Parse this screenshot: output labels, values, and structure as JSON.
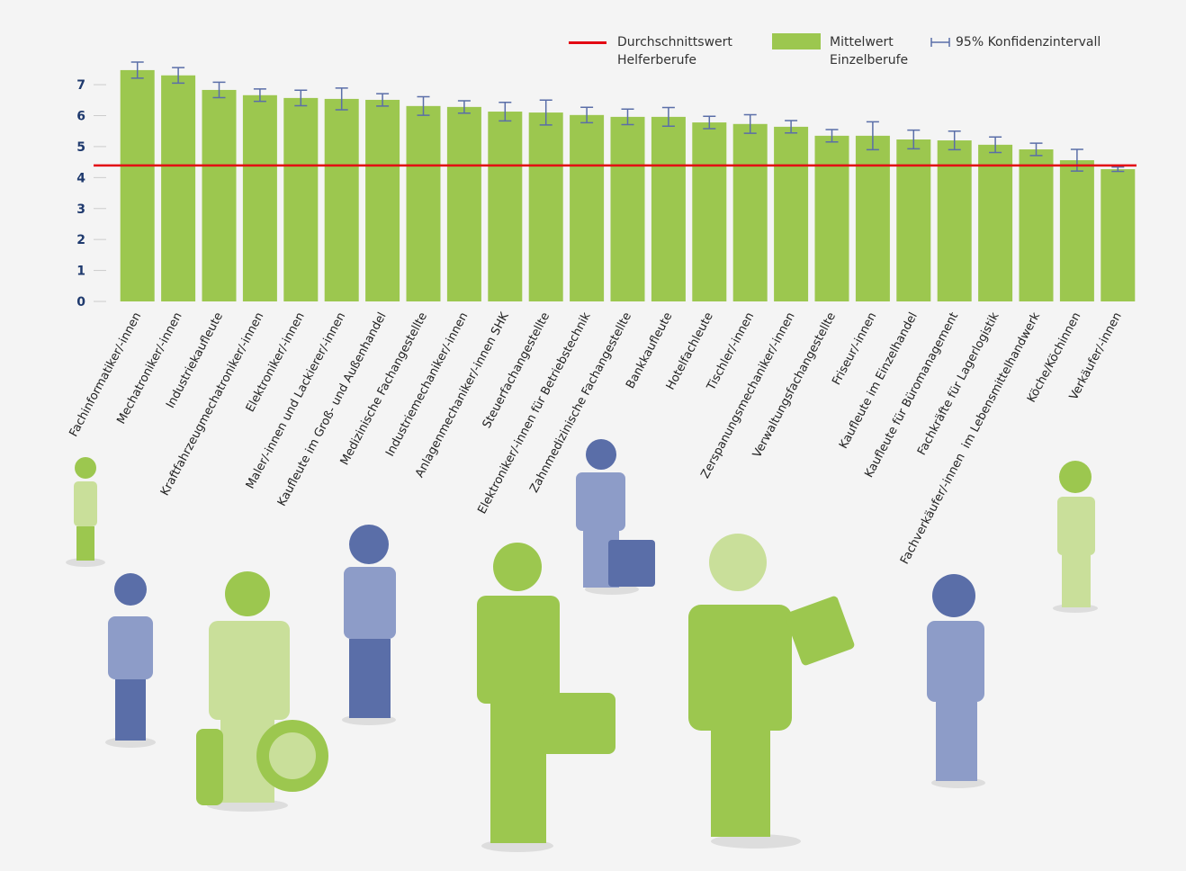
{
  "chart_data": {
    "type": "bar",
    "categories": [
      "Fachinformatiker/-innen",
      "Mechatroniker/-innen",
      "Industriekaufleute",
      "Kraftfahrzeugmechatroniker/-innen",
      "Elektroniker/-innen",
      "Maler/-innen und Lackierer/-innen",
      "Kaufleute im Groß- und Außenhandel",
      "Medizinische Fachangestellte",
      "Industriemechaniker/-innen",
      "Anlagenmechaniker/-innen SHK",
      "Steuerfachangestellte",
      "Elektroniker/-innen für Betriebstechnik",
      "Zahnmedizinische Fachangestellte",
      "Bankkaufleute",
      "Hotelfachleute",
      "Tischler/-innen",
      "Zerspanungsmechaniker/-innen",
      "Verwaltungsfachangestellte",
      "Friseur/-innen",
      "Kaufleute im Einzelhandel",
      "Kaufleute für Büromanagement",
      "Fachkräfte für Lagerlogistik",
      "Fachverkäufer/-innen  im Lebensmittelhandwerk",
      "Köche/Köchinnen",
      "Verkäufer/-innen"
    ],
    "series": [
      {
        "name": "Mittelwert Einzelberufe",
        "color": "#9cc74f",
        "values": [
          7.47,
          7.3,
          6.83,
          6.66,
          6.57,
          6.54,
          6.51,
          6.31,
          6.28,
          6.13,
          6.1,
          6.02,
          5.96,
          5.96,
          5.78,
          5.73,
          5.64,
          5.35,
          5.35,
          5.23,
          5.2,
          5.06,
          4.91,
          4.56,
          4.27
        ],
        "errors": [
          0.26,
          0.25,
          0.25,
          0.2,
          0.25,
          0.35,
          0.2,
          0.3,
          0.2,
          0.3,
          0.4,
          0.25,
          0.25,
          0.3,
          0.2,
          0.3,
          0.2,
          0.2,
          0.45,
          0.3,
          0.3,
          0.25,
          0.2,
          0.35,
          0.07
        ]
      }
    ],
    "error_bar": {
      "name": "95% Konfidenzintervall",
      "color": "#5a6ea8"
    },
    "reference_line": {
      "name": "Durchschnittswert Helferberufe",
      "value": 4.39,
      "color": "#e30613"
    },
    "ylim": [
      0,
      7.7
    ],
    "yticks": [
      0,
      1,
      2,
      3,
      4,
      5,
      6,
      7
    ]
  }
}
